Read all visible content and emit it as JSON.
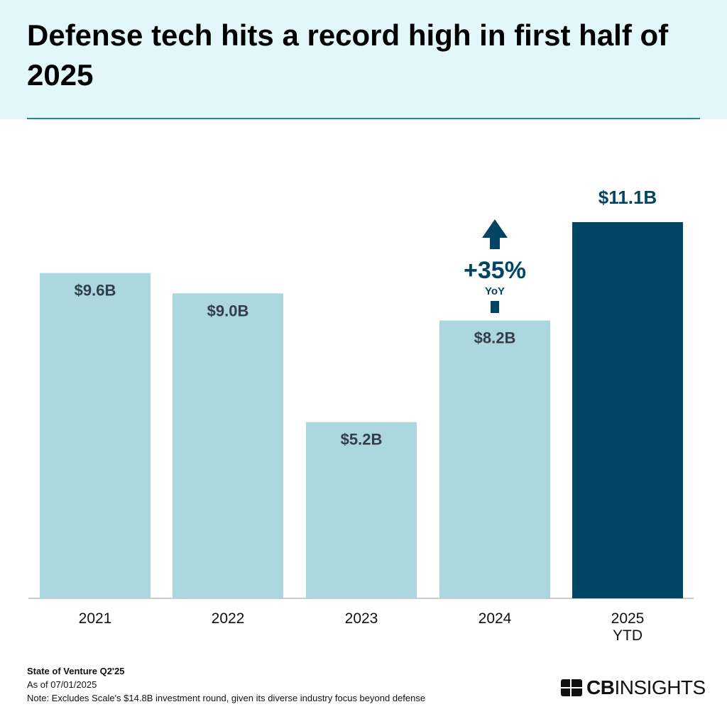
{
  "title": "Defense tech hits a record high in first half of 2025",
  "chart_data": {
    "type": "bar",
    "title": "Defense tech hits a record high in first half of 2025",
    "categories": [
      "2021",
      "2022",
      "2023",
      "2024",
      "2025 YTD"
    ],
    "category_lines": [
      [
        "2021"
      ],
      [
        "2022"
      ],
      [
        "2023"
      ],
      [
        "2024"
      ],
      [
        "2025",
        "YTD"
      ]
    ],
    "values": [
      9.6,
      9.0,
      5.2,
      8.2,
      11.1
    ],
    "data_labels": [
      "$9.6B",
      "$9.0B",
      "$5.2B",
      "$8.2B",
      "$11.1B"
    ],
    "unit": "$B",
    "ylim": [
      0,
      11.1
    ],
    "grid": false,
    "colors": {
      "default": "#acd7e0",
      "highlight": "#004664",
      "label": "#333f48",
      "annotation": "#004664"
    },
    "highlight_index": 4,
    "annotation": {
      "text": "+35%",
      "subtext": "YoY",
      "icon": "arrow-up-icon",
      "between": [
        "2024",
        "2025 YTD"
      ]
    }
  },
  "footer": {
    "source": "State of Venture Q2'25",
    "date": "As of 07/01/2025",
    "note": "Note: Excludes Scale's $14.8B investment round, given its diverse industry focus beyond defense"
  },
  "logo": {
    "text_bold": "CB",
    "text_light": "INSIGHTS"
  }
}
